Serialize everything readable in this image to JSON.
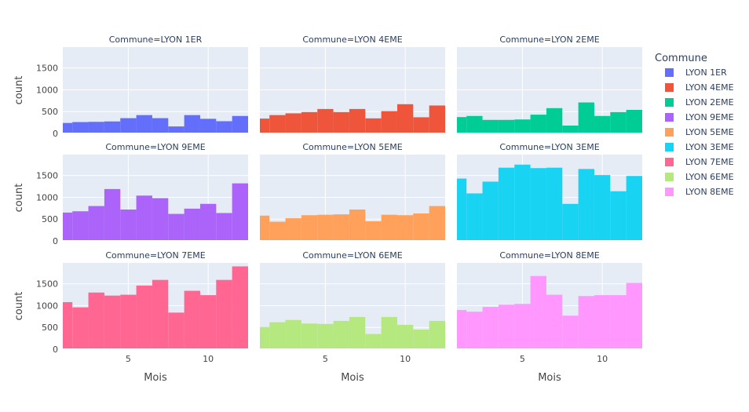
{
  "chart_data": {
    "type": "bar",
    "facet_prefix": "Commune=",
    "xlabel": "Mois",
    "ylabel": "count",
    "x": [
      1,
      2,
      3,
      4,
      5,
      6,
      7,
      8,
      9,
      10,
      11,
      12
    ],
    "xlim": [
      0.9,
      12.5
    ],
    "xticks": [
      5,
      10
    ],
    "ylim": [
      0,
      1980
    ],
    "yticks": [
      0,
      500,
      1000,
      1500
    ],
    "legend_title": "Commune",
    "legend_position": "right",
    "grid": true,
    "plot_bgcolor": "#E5ECF6",
    "series": [
      {
        "name": "LYON 1ER",
        "color": "#636EFA",
        "values": [
          240,
          260,
          265,
          275,
          350,
          420,
          350,
          160,
          420,
          335,
          280,
          400
        ]
      },
      {
        "name": "LYON 4EME",
        "color": "#EF553B",
        "values": [
          340,
          420,
          460,
          490,
          560,
          490,
          560,
          345,
          510,
          670,
          370,
          640
        ]
      },
      {
        "name": "LYON 2EME",
        "color": "#00CC96",
        "values": [
          375,
          400,
          310,
          310,
          320,
          430,
          580,
          180,
          710,
          400,
          490,
          540
        ]
      },
      {
        "name": "LYON 9EME",
        "color": "#AB63FA",
        "values": [
          650,
          680,
          800,
          1190,
          720,
          1040,
          980,
          620,
          740,
          850,
          640,
          1320
        ]
      },
      {
        "name": "LYON 5EME",
        "color": "#FFA15A",
        "values": [
          580,
          440,
          520,
          590,
          600,
          610,
          720,
          450,
          600,
          590,
          630,
          800
        ]
      },
      {
        "name": "LYON 3EME",
        "color": "#19D3F3",
        "values": [
          1430,
          1090,
          1360,
          1680,
          1750,
          1670,
          1680,
          850,
          1650,
          1510,
          1140,
          1490
        ]
      },
      {
        "name": "LYON 7EME",
        "color": "#FF6692",
        "values": [
          1080,
          960,
          1300,
          1230,
          1250,
          1460,
          1590,
          840,
          1340,
          1240,
          1590,
          1900
        ]
      },
      {
        "name": "LYON 6EME",
        "color": "#B6E880",
        "values": [
          510,
          620,
          670,
          590,
          580,
          650,
          740,
          350,
          740,
          560,
          450,
          650
        ]
      },
      {
        "name": "LYON 8EME",
        "color": "#FF97FF",
        "values": [
          900,
          860,
          970,
          1020,
          1040,
          1680,
          1250,
          770,
          1220,
          1240,
          1240,
          1520
        ]
      }
    ]
  }
}
